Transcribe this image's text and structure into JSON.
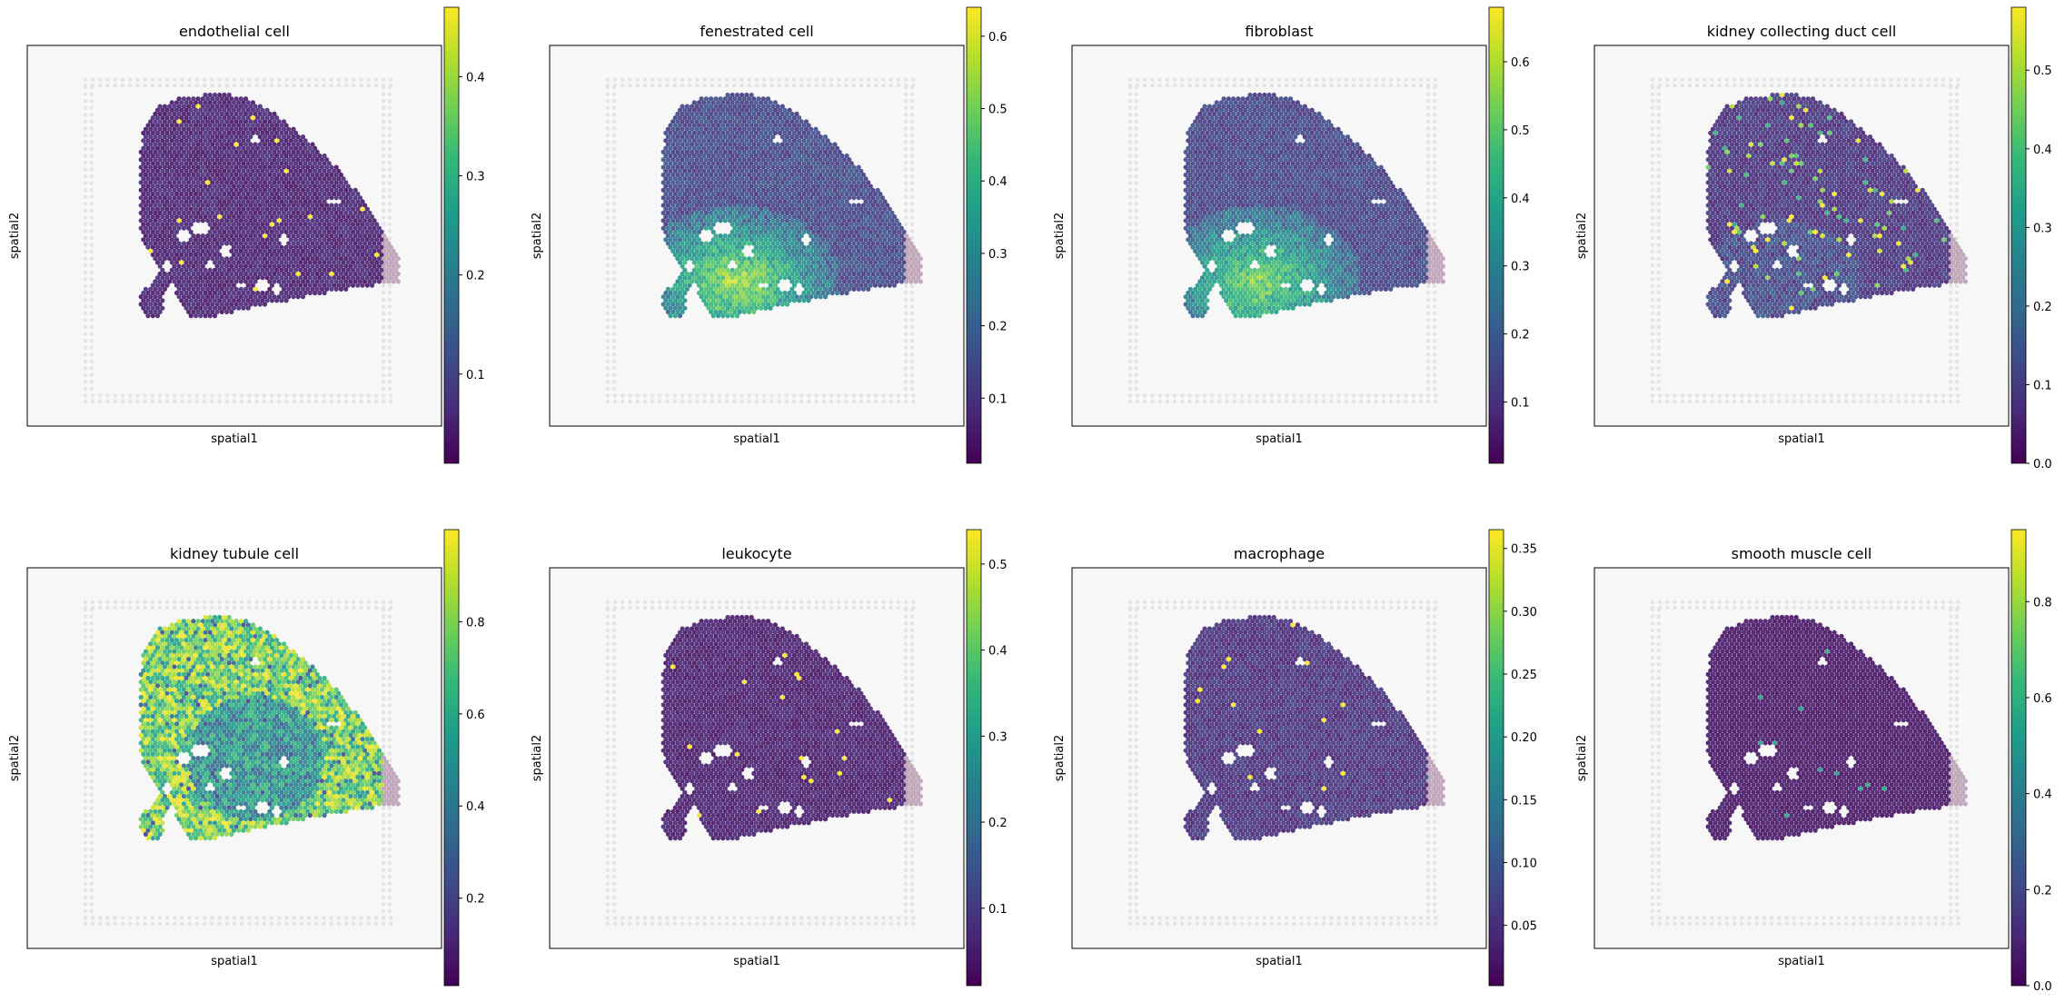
{
  "figure": {
    "layout": "grid of 8 spatial scatter panels with colorbars",
    "colormap": "viridis",
    "colormap_stops": [
      "#440154",
      "#482878",
      "#3e4989",
      "#31688e",
      "#26828e",
      "#1f9e89",
      "#35b779",
      "#6ece58",
      "#b5de2b",
      "#fde725"
    ],
    "background_color": "#f7f7f7",
    "low_value_overlay_color": "#b89bb0"
  },
  "chart_data": [
    {
      "type": "scatter",
      "title": "endothelial cell",
      "xlabel": "spatial1",
      "ylabel": "spatial2",
      "colorbar": {
        "ticks": [
          "0.1",
          "0.2",
          "0.3",
          "0.4"
        ],
        "tick_values": [
          0.1,
          0.2,
          0.3,
          0.4
        ],
        "range": [
          0.01,
          0.47
        ]
      },
      "pattern": "uniform_low"
    },
    {
      "type": "scatter",
      "title": "fenestrated cell",
      "xlabel": "spatial1",
      "ylabel": "spatial2",
      "colorbar": {
        "ticks": [
          "0.1",
          "0.2",
          "0.3",
          "0.4",
          "0.5",
          "0.6"
        ],
        "tick_values": [
          0.1,
          0.2,
          0.3,
          0.4,
          0.5,
          0.6
        ],
        "range": [
          0.01,
          0.64
        ]
      },
      "pattern": "medulla_moderate"
    },
    {
      "type": "scatter",
      "title": "fibroblast",
      "xlabel": "spatial1",
      "ylabel": "spatial2",
      "colorbar": {
        "ticks": [
          "0.1",
          "0.2",
          "0.3",
          "0.4",
          "0.5",
          "0.6"
        ],
        "tick_values": [
          0.1,
          0.2,
          0.3,
          0.4,
          0.5,
          0.6
        ],
        "range": [
          0.01,
          0.68
        ]
      },
      "pattern": "medulla_moderate"
    },
    {
      "type": "scatter",
      "title": "kidney collecting duct cell",
      "xlabel": "spatial1",
      "ylabel": "spatial2",
      "colorbar": {
        "ticks": [
          "0.0",
          "0.1",
          "0.2",
          "0.3",
          "0.4",
          "0.5"
        ],
        "tick_values": [
          0.0,
          0.1,
          0.2,
          0.3,
          0.4,
          0.5
        ],
        "range": [
          0.0,
          0.58
        ]
      },
      "pattern": "edge_sparse"
    },
    {
      "type": "scatter",
      "title": "kidney tubule cell",
      "xlabel": "spatial1",
      "ylabel": "spatial2",
      "colorbar": {
        "ticks": [
          "0.2",
          "0.4",
          "0.6",
          "0.8"
        ],
        "tick_values": [
          0.2,
          0.4,
          0.6,
          0.8
        ],
        "range": [
          0.01,
          1.0
        ]
      },
      "pattern": "high_cortex"
    },
    {
      "type": "scatter",
      "title": "leukocyte",
      "xlabel": "spatial1",
      "ylabel": "spatial2",
      "colorbar": {
        "ticks": [
          "0.1",
          "0.2",
          "0.3",
          "0.4",
          "0.5"
        ],
        "tick_values": [
          0.1,
          0.2,
          0.3,
          0.4,
          0.5
        ],
        "range": [
          0.01,
          0.54
        ]
      },
      "pattern": "uniform_low"
    },
    {
      "type": "scatter",
      "title": "macrophage",
      "xlabel": "spatial1",
      "ylabel": "spatial2",
      "colorbar": {
        "ticks": [
          "0.05",
          "0.10",
          "0.15",
          "0.20",
          "0.25",
          "0.30",
          "0.35"
        ],
        "tick_values": [
          0.05,
          0.1,
          0.15,
          0.2,
          0.25,
          0.3,
          0.35
        ],
        "range": [
          0.002,
          0.365
        ]
      },
      "pattern": "uniform_low"
    },
    {
      "type": "scatter",
      "title": "smooth muscle cell",
      "xlabel": "spatial1",
      "ylabel": "spatial2",
      "colorbar": {
        "ticks": [
          "0.0",
          "0.2",
          "0.4",
          "0.6",
          "0.8"
        ],
        "tick_values": [
          0.0,
          0.2,
          0.4,
          0.6,
          0.8
        ],
        "range": [
          0.0,
          0.95
        ]
      },
      "pattern": "uniform_low"
    }
  ]
}
